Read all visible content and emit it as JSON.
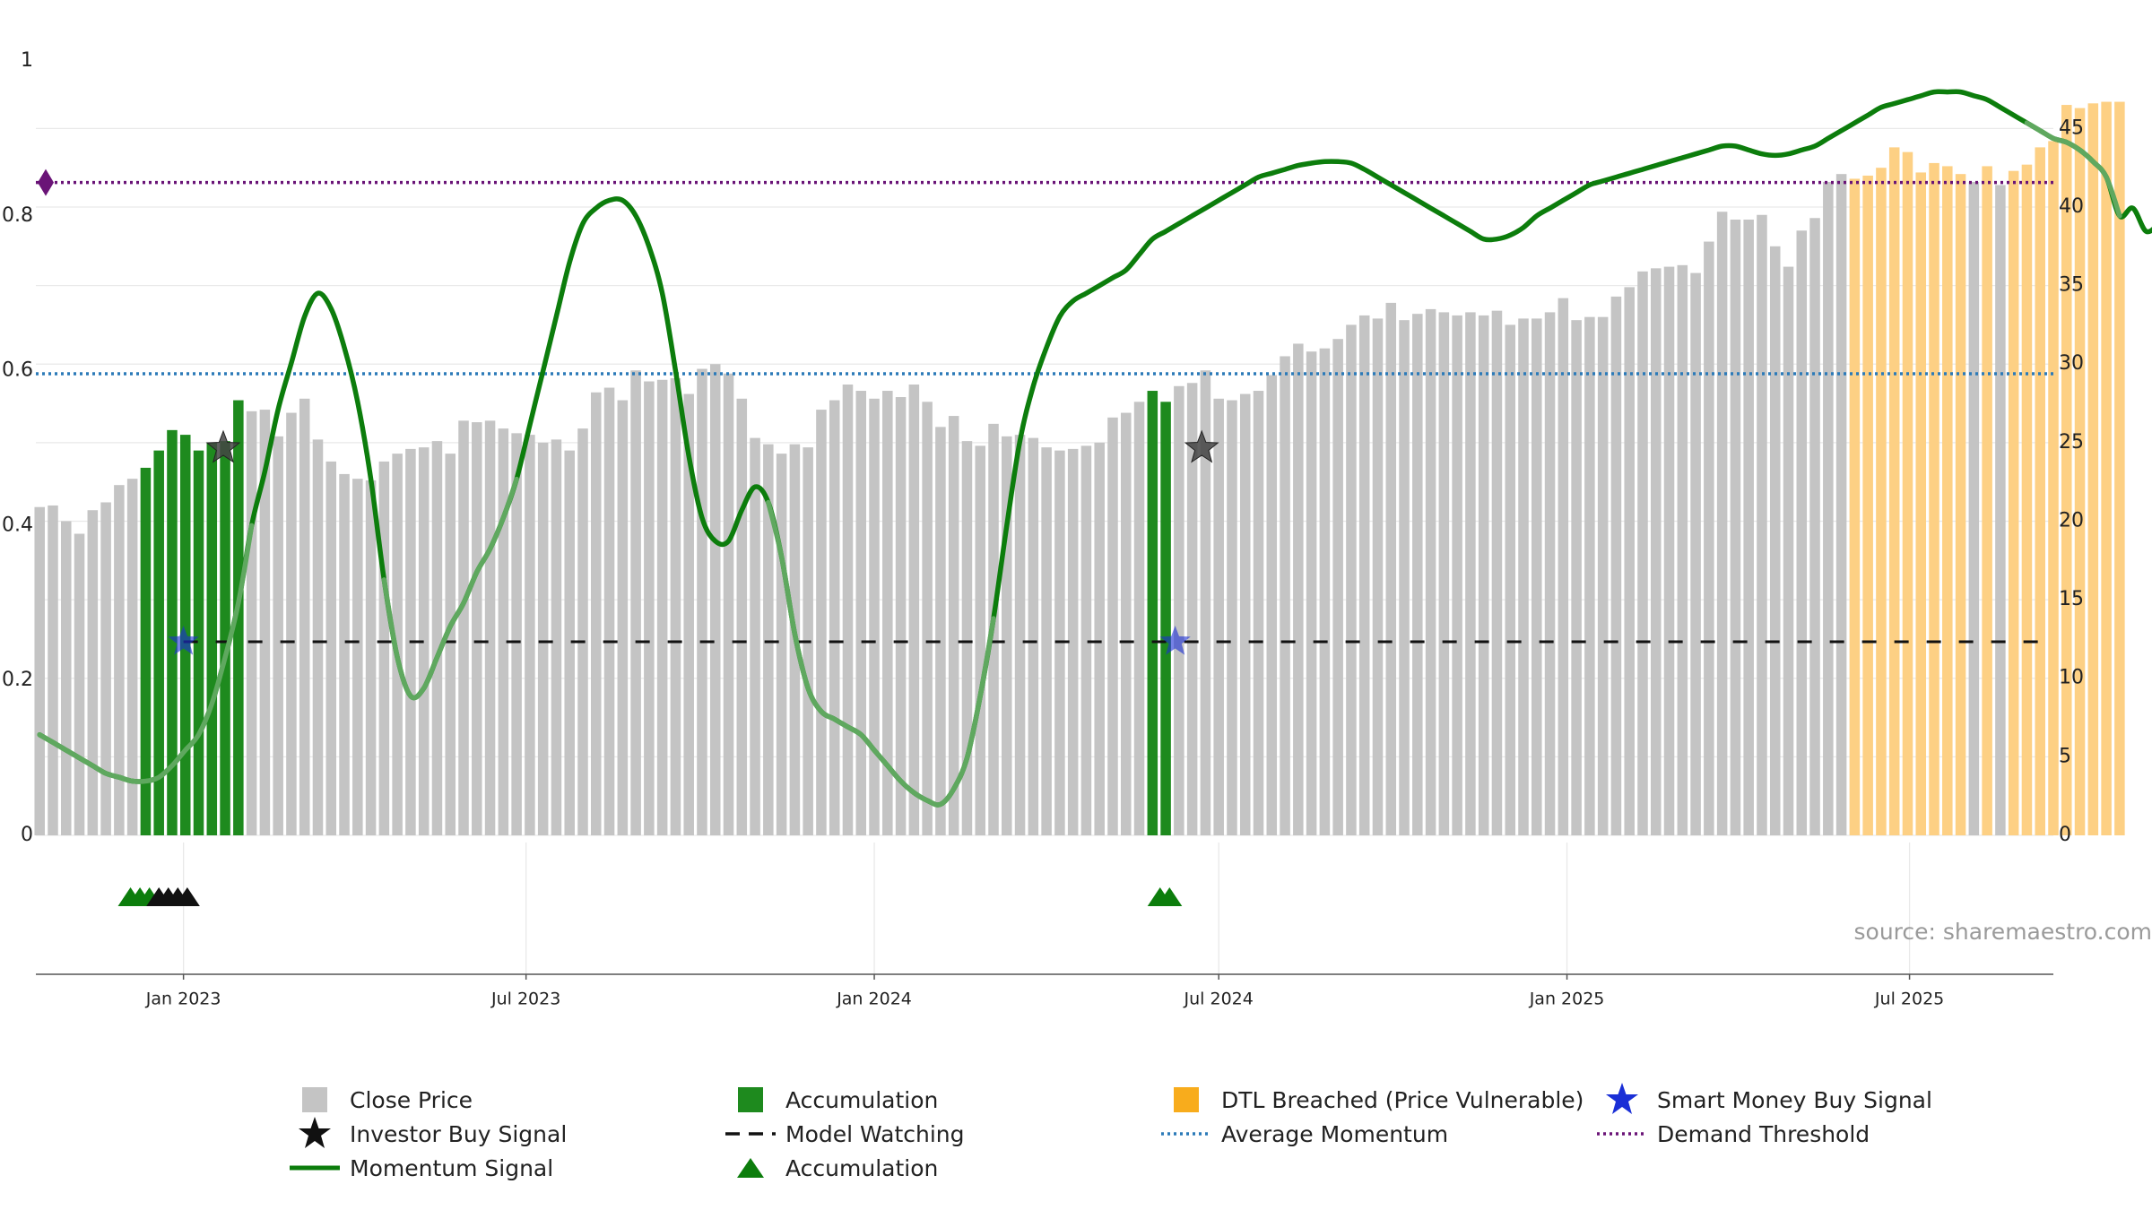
{
  "chart_data": {
    "type": "bar",
    "source_note": "source: sharemaestro.com",
    "y_left": {
      "lim": [
        0,
        1
      ],
      "ticks": [
        0,
        0.2,
        0.4,
        0.6,
        0.8,
        1
      ],
      "tick_labels": [
        "0",
        "0.2",
        "0.4",
        "0.6",
        "0.8",
        "1"
      ]
    },
    "y_right": {
      "lim": [
        0,
        49.3
      ],
      "ticks": [
        0,
        5,
        10,
        15,
        20,
        25,
        30,
        35,
        40,
        45
      ],
      "tick_labels": [
        "0",
        "5",
        "10",
        "15",
        "20",
        "25",
        "30",
        "35",
        "40",
        "45"
      ]
    },
    "x_axis": {
      "start": "2022-10-15",
      "end": "2025-09-15",
      "ticks": [
        {
          "date": "2023-01-01",
          "label": "Jan 2023"
        },
        {
          "date": "2023-07-01",
          "label": "Jul 2023"
        },
        {
          "date": "2024-01-01",
          "label": "Jan 2024"
        },
        {
          "date": "2024-07-01",
          "label": "Jul 2024"
        },
        {
          "date": "2025-01-01",
          "label": "Jan 2025"
        },
        {
          "date": "2025-07-01",
          "label": "Jul 2025"
        }
      ]
    },
    "close_price": {
      "start": "2022-10-17",
      "interval_days": 7,
      "values": [
        20.9,
        21.0,
        20.0,
        19.2,
        20.7,
        21.2,
        22.3,
        22.7,
        23.4,
        24.5,
        25.8,
        25.5,
        24.5,
        25.0,
        25.1,
        27.7,
        27.0,
        27.1,
        25.4,
        26.9,
        27.8,
        25.2,
        23.8,
        23.0,
        22.7,
        22.6,
        23.8,
        24.3,
        24.6,
        24.7,
        25.1,
        24.3,
        26.4,
        26.3,
        26.4,
        25.9,
        25.6,
        25.5,
        25.0,
        25.2,
        24.5,
        25.9,
        28.2,
        28.5,
        27.7,
        29.6,
        28.9,
        29.0,
        29.1,
        28.1,
        29.7,
        30.0,
        29.4,
        27.8,
        25.3,
        24.9,
        24.3,
        24.9,
        24.7,
        27.1,
        27.7,
        28.7,
        28.3,
        27.8,
        28.3,
        27.9,
        28.7,
        27.6,
        26.0,
        26.7,
        25.1,
        24.8,
        26.2,
        25.4,
        25.5,
        25.3,
        24.7,
        24.5,
        24.6,
        24.8,
        25.0,
        26.6,
        26.9,
        27.6,
        28.3,
        27.6,
        28.6,
        28.8,
        29.6,
        27.8,
        27.7,
        28.1,
        28.3,
        29.3,
        30.5,
        31.3,
        30.8,
        31.0,
        31.6,
        32.5,
        33.1,
        32.9,
        33.9,
        32.8,
        33.2,
        33.5,
        33.3,
        33.1,
        33.3,
        33.1,
        33.4,
        32.5,
        32.9,
        32.9,
        33.3,
        34.2,
        32.8,
        33.0,
        33.0,
        34.3,
        34.9,
        35.9,
        36.1,
        36.2,
        36.3,
        35.8,
        37.8,
        39.7,
        39.2,
        39.2,
        39.5,
        37.5,
        36.2,
        38.5,
        39.3,
        41.6,
        42.1,
        41.8,
        42.0,
        42.5,
        43.8,
        43.5,
        42.2,
        42.8,
        42.6,
        42.1,
        41.6,
        42.6,
        41.4,
        42.3,
        42.7,
        43.8,
        44.2,
        46.5,
        46.3,
        46.6,
        46.7,
        46.7
      ],
      "highlight_ranges": [
        {
          "type": "accumulation",
          "from_index": 8,
          "to_index": 15
        },
        {
          "type": "accumulation",
          "from_index": 84,
          "to_index": 85
        },
        {
          "type": "dtl_breached",
          "from_index": 137,
          "to_index": 145
        },
        {
          "type": "dtl_breached",
          "from_index": 147,
          "to_index": 147
        },
        {
          "type": "dtl_breached",
          "from_index": 149,
          "to_index": 157
        }
      ]
    },
    "momentum_signal": {
      "start": "2022-10-17",
      "interval_days": 7,
      "values": [
        0.13,
        0.12,
        0.11,
        0.1,
        0.09,
        0.08,
        0.075,
        0.07,
        0.07,
        0.075,
        0.09,
        0.11,
        0.13,
        0.17,
        0.23,
        0.3,
        0.4,
        0.47,
        0.55,
        0.61,
        0.67,
        0.7,
        0.68,
        0.63,
        0.56,
        0.46,
        0.33,
        0.23,
        0.18,
        0.19,
        0.23,
        0.27,
        0.3,
        0.34,
        0.37,
        0.41,
        0.46,
        0.53,
        0.6,
        0.67,
        0.74,
        0.79,
        0.81,
        0.82,
        0.82,
        0.8,
        0.76,
        0.7,
        0.6,
        0.49,
        0.41,
        0.38,
        0.38,
        0.42,
        0.45,
        0.43,
        0.36,
        0.26,
        0.19,
        0.16,
        0.15,
        0.14,
        0.13,
        0.11,
        0.09,
        0.07,
        0.055,
        0.045,
        0.04,
        0.06,
        0.1,
        0.18,
        0.28,
        0.4,
        0.51,
        0.58,
        0.63,
        0.67,
        0.69,
        0.7,
        0.71,
        0.72,
        0.73,
        0.75,
        0.77,
        0.78,
        0.79,
        0.8,
        0.81,
        0.82,
        0.83,
        0.84,
        0.85,
        0.855,
        0.86,
        0.865,
        0.868,
        0.87,
        0.87,
        0.868,
        0.86,
        0.85,
        0.84,
        0.83,
        0.82,
        0.81,
        0.8,
        0.79,
        0.78,
        0.77,
        0.77,
        0.775,
        0.785,
        0.8,
        0.81,
        0.82,
        0.83,
        0.84,
        0.845,
        0.85,
        0.855,
        0.86,
        0.865,
        0.87,
        0.875,
        0.88,
        0.885,
        0.89,
        0.89,
        0.885,
        0.88,
        0.878,
        0.88,
        0.885,
        0.89,
        0.9,
        0.91,
        0.92,
        0.93,
        0.94,
        0.945,
        0.95,
        0.955,
        0.96,
        0.96,
        0.96,
        0.955,
        0.95,
        0.94,
        0.93,
        0.92,
        0.91,
        0.9,
        0.895,
        0.885,
        0.87,
        0.85,
        0.8,
        0.81,
        0.78,
        0.79
      ],
      "faded_ranges": [
        {
          "from_index": 0,
          "to_index": 16
        },
        {
          "from_index": 26,
          "to_index": 36
        },
        {
          "from_index": 55,
          "to_index": 72
        },
        {
          "from_index": 150,
          "to_index": 157
        }
      ]
    },
    "average_momentum": 0.596,
    "demand_threshold": 0.843,
    "model_watching": {
      "level": 0.25,
      "from": "2023-01-01",
      "to": "2025-09-15"
    },
    "smart_money_buy_signals": [
      {
        "date": "2023-01-01",
        "value": 0.25
      },
      {
        "date": "2024-06-08",
        "value": 0.25
      }
    ],
    "investor_buy_signals": [
      {
        "date": "2023-01-22",
        "value": 0.5
      },
      {
        "date": "2024-06-22",
        "value": 0.5
      }
    ],
    "accumulation_markers": [
      {
        "date": "2022-12-04",
        "color": "green"
      },
      {
        "date": "2022-12-09",
        "color": "green"
      },
      {
        "date": "2022-12-14",
        "color": "green"
      },
      {
        "date": "2022-12-19",
        "color": "black"
      },
      {
        "date": "2022-12-24",
        "color": "black"
      },
      {
        "date": "2022-12-29",
        "color": "black"
      },
      {
        "date": "2023-01-03",
        "color": "black"
      },
      {
        "date": "2024-05-31",
        "color": "green"
      },
      {
        "date": "2024-06-05",
        "color": "green"
      }
    ],
    "demand_marker_label": "Demand threshold marker",
    "colors": {
      "close_price": "#c4c4c4",
      "accumulation": "#1e8a1e",
      "dtl_breached": "#fdd084",
      "momentum": "#0c7d0c",
      "momentum_faded": "#5fa85f",
      "average_momentum": "#2b7ab8",
      "demand_threshold": "#6a1477",
      "smart_money": "#1a2fd6",
      "investor": "#111111",
      "grid": "#e9e9e9"
    }
  },
  "legend": {
    "items": [
      {
        "label": "Close Price",
        "symbol": "square-gray"
      },
      {
        "label": "Accumulation",
        "symbol": "square-green"
      },
      {
        "label": "DTL Breached (Price Vulnerable)",
        "symbol": "square-orange"
      },
      {
        "label": "Smart Money Buy Signal",
        "symbol": "star-blue"
      },
      {
        "label": "Investor Buy Signal",
        "symbol": "star-black"
      },
      {
        "label": "Model Watching",
        "symbol": "dash-black"
      },
      {
        "label": "Average Momentum",
        "symbol": "dot-blue"
      },
      {
        "label": "Demand Threshold",
        "symbol": "dot-purple"
      },
      {
        "label": "Momentum Signal",
        "symbol": "line-green"
      },
      {
        "label": "Accumulation",
        "symbol": "triangle-green"
      }
    ]
  }
}
